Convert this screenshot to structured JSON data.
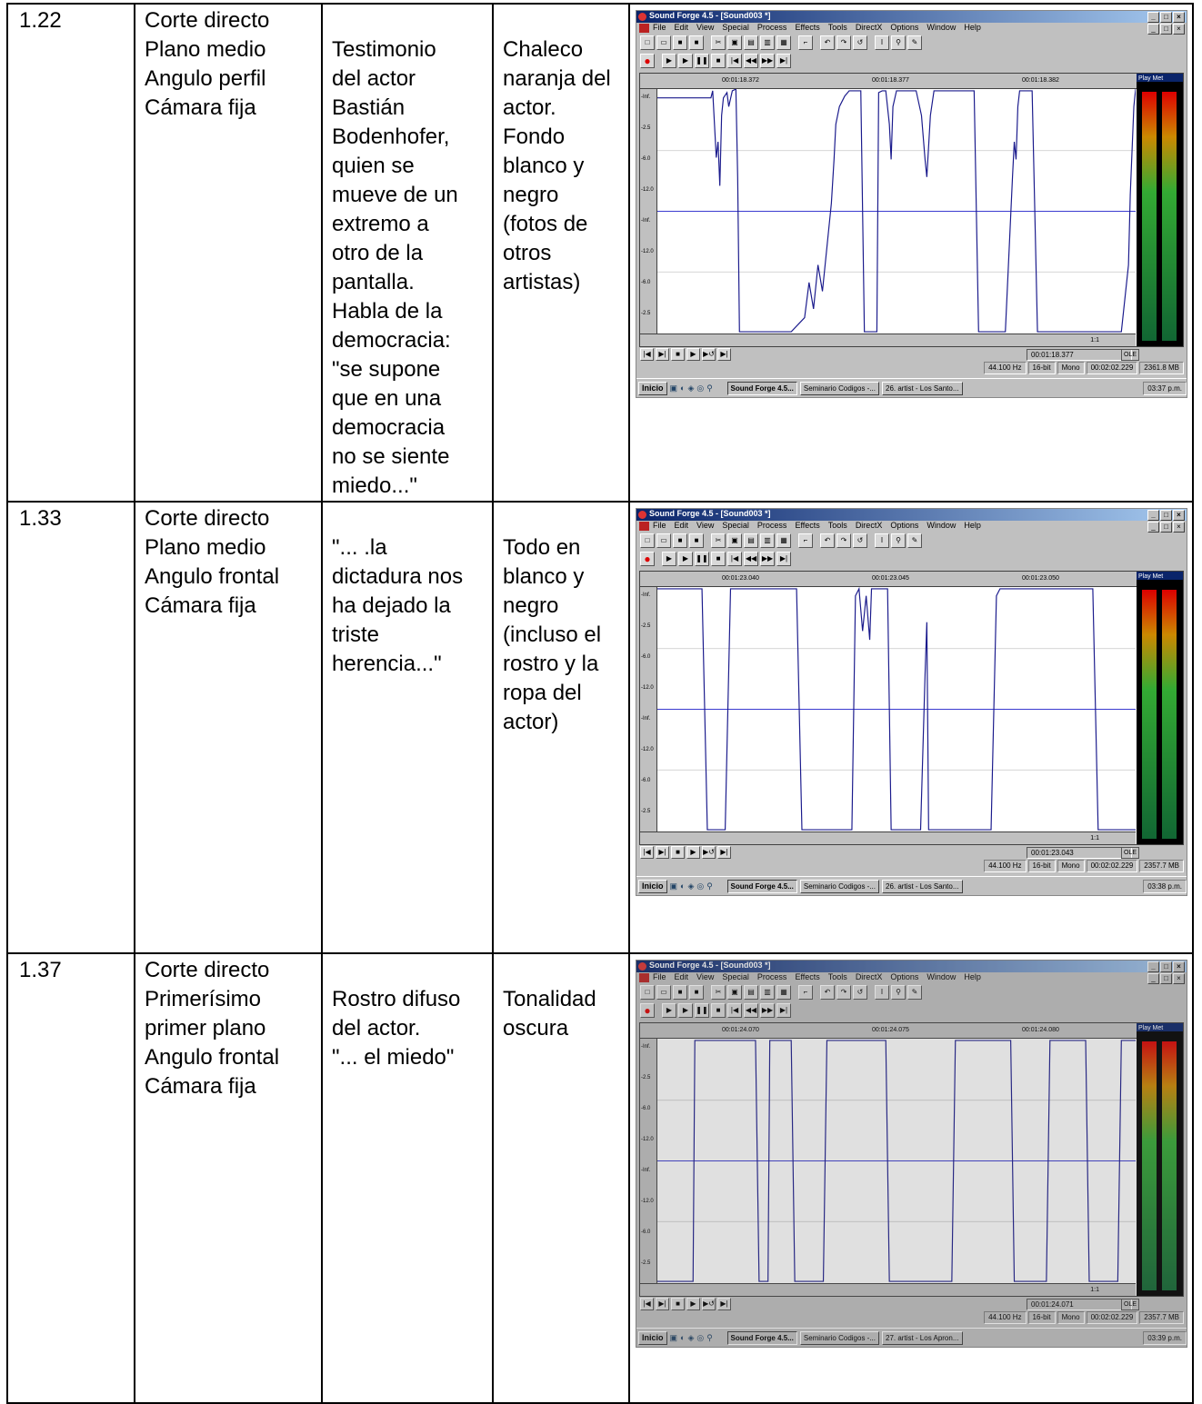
{
  "rows": [
    {
      "num": "1.22",
      "plano": "Corte directo\nPlano medio\nAngulo perfil\nCámara fija",
      "desc": "Testimonio\ndel actor\nBastián\nBodenhofer,\nquien se\nmueve de un\nextremo a\notro de la\npantalla.\nHabla de la\ndemocracia:\n\"se supone\nque en una\ndemocracia\nno se siente\nmiedo...\"",
      "ambient": "Chaleco\nnaranja del\nactor.\nFondo\nblanco y\nnegro\n(fotos de\notros\nartistas)",
      "sf": {
        "title": "Sound Forge 4.5 - [Sound003 *]",
        "ruler": [
          "00:01:18.372",
          "00:01:18.377",
          "00:01:18.382"
        ],
        "position": "00:01:18.377",
        "status": [
          "44.100 Hz",
          "16-bit",
          "Mono",
          "00:02:02.229",
          "2361.8 MB"
        ],
        "tasks": [
          "Sound Forge 4.5...",
          "Seminario Codigos -...",
          "26. artist - Los Santo..."
        ],
        "clock": "03:37 p.m.",
        "wave": "0,10 60,10 62,2 64,40 66,78 68,60 70,110 72,30 74,10 78,4 80,20 84,2 88,0 90,100 92,276 94,276 110,276 130,276 150,276 165,260 170,220 175,250 180,200 185,230 190,180 195,130 198,80 200,40 204,20 210,8 215,2 228,2 232,276 240,276 246,276 248,4 252,2 256,2 260,40 262,80 264,20 268,2 290,2 296,30 300,80 302,100 306,30 310,2 355,2 360,276 380,276 390,276 398,100 400,60 402,80 404,20 406,2 420,2 426,276 440,276 520,276 528,200 530,120 534,20 536,0"
      }
    },
    {
      "num": "1.33",
      "plano": "Corte directo\nPlano medio\nAngulo frontal\nCámara fija",
      "desc": "\"... .la\ndictadura nos\nha dejado la\ntriste\nherencia...\"",
      "ambient": "Todo en\nblanco y\nnegro\n(incluso el\nrostro y la\nropa del\nactor)",
      "sf": {
        "title": "Sound Forge 4.5 - [Sound003 *]",
        "ruler": [
          "00:01:23.040",
          "00:01:23.045",
          "00:01:23.050"
        ],
        "position": "00:01:23.043",
        "status": [
          "44.100 Hz",
          "16-bit",
          "Mono",
          "00:02:02.229",
          "2357.7 MB"
        ],
        "tasks": [
          "Sound Forge 4.5...",
          "Seminario Codigos -...",
          "26. artist - Los Santo..."
        ],
        "clock": "03:38 p.m.",
        "wave": "0,2 50,2 56,276 76,276 82,2 156,2 162,276 218,276 222,10 226,2 230,50 234,10 238,60 240,2 258,2 262,276 295,276 300,100 302,40 304,276 374,276 380,10 384,2 488,2 494,276 536,276"
      }
    },
    {
      "num": "1.37",
      "plano": "Corte directo\nPrimerísimo\nprimer plano\nAngulo frontal\nCámara fija",
      "desc": "Rostro difuso\ndel actor.\n\"... el miedo\"",
      "ambient": "Tonalidad\noscura",
      "sf": {
        "title": "Sound Forge 4.5 - [Sound003 *]",
        "ruler": [
          "00:01:24.070",
          "00:01:24.075",
          "00:01:24.080"
        ],
        "position": "00:01:24.071",
        "status": [
          "44.100 Hz",
          "16-bit",
          "Mono",
          "00:02:02.229",
          "2357.7 MB"
        ],
        "tasks": [
          "Sound Forge 4.5...",
          "Seminario Codigos -...",
          "27. artist - Los Apron..."
        ],
        "clock": "03:39 p.m.",
        "wave": "0,276 40,276 42,2 110,2 114,276 124,276 126,2 150,2 154,276 186,276 190,2 256,2 260,276 330,276 334,2 396,2 400,276 436,276 440,2 480,2 484,276 516,276 520,2 536,2"
      }
    }
  ],
  "sf_menu": [
    "File",
    "Edit",
    "View",
    "Special",
    "Process",
    "Effects",
    "Tools",
    "DirectX",
    "Options",
    "Window",
    "Help"
  ],
  "sf_start": "Inicio",
  "sf_meter_title": "Play Met",
  "sf_zoom": "1:1",
  "sf_ole": "OLE",
  "sf_db": [
    "-Inf.",
    "-2.5",
    "-6.0",
    "-12.0",
    "-Inf.",
    "-12.0",
    "-6.0",
    "-2.5"
  ],
  "colors": {
    "wave": "#1a1a8c",
    "title_bar": "#0a246a"
  }
}
